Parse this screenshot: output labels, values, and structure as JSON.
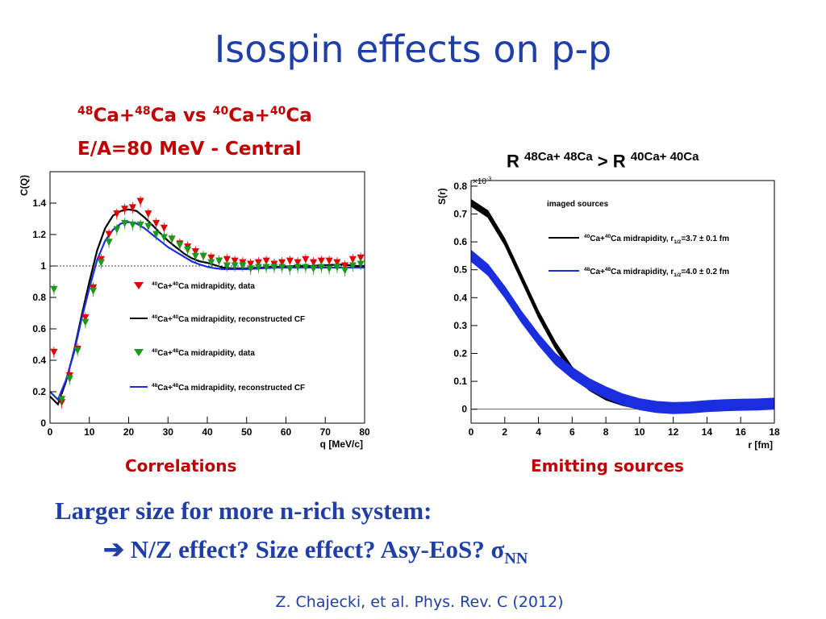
{
  "slide": {
    "title": "Isospin effects on p-p",
    "subtitle_line1": {
      "a": "48",
      "b": "Ca+",
      "c": "48",
      "d": "Ca vs ",
      "e": "40",
      "f": "Ca+",
      "g": "40",
      "h": "Ca"
    },
    "subtitle_line2": "E/A=80 MeV - Central",
    "r_compare": {
      "r1": "R",
      "sys1": "48Ca+ 48Ca",
      "gt": ">",
      "r2": "R",
      "sys2": "40Ca+ 40Ca"
    },
    "caption_left": "Correlations",
    "caption_right": "Emitting sources",
    "conclusion_line1": "Larger size for more n-rich system:",
    "conclusion_arrow": "➔",
    "conclusion_line2": "N/Z effect? Size effect? Asy-EoS? σ",
    "conclusion_sub": "NN",
    "citation": "Z. Chajecki, et al. Phys. Rev. C (2012)"
  },
  "colors": {
    "title_blue": "#1f3ea8",
    "subtitle_red": "#c00000",
    "red": "#e00000",
    "green": "#1a9a1a",
    "blue": "#1a2ee0",
    "black": "#000000"
  },
  "chart_data": [
    {
      "type": "scatter",
      "ylabel": "C(Q)",
      "xlabel": "q [MeV/c]",
      "xlim": [
        0,
        80
      ],
      "ylim": [
        0,
        1.6
      ],
      "x_ticks": [
        0,
        10,
        20,
        30,
        40,
        50,
        60,
        70,
        80
      ],
      "y_ticks": [
        0,
        0.2,
        0.4,
        0.6,
        0.8,
        1,
        1.2,
        1.4
      ],
      "y_tick_labels": [
        "0",
        "0.2",
        "0.4",
        "0.6",
        "0.8",
        "1",
        "1.2",
        "1.4"
      ],
      "reference_line_y": 1,
      "legend": [
        {
          "sup1": "40",
          "mid1": "Ca+",
          "sup2": "40",
          "rest": "Ca midrapidity, data"
        },
        {
          "sup1": "40",
          "mid1": "Ca+",
          "sup2": "40",
          "rest": "Ca midrapidity, reconstructed CF"
        },
        {
          "sup1": "40",
          "mid1": "Ca+",
          "sup2": "48",
          "rest": "Ca midrapidity, data"
        },
        {
          "sup1": "48",
          "mid1": "Ca+",
          "sup2": "48",
          "rest": "Ca midrapidity, reconstructed CF"
        }
      ],
      "series": [
        {
          "name": "40Ca+40Ca midrapidity, data",
          "color": "#e00000",
          "marker": "triangle-down",
          "x": [
            1,
            3,
            5,
            7,
            9,
            11,
            13,
            15,
            17,
            19,
            21,
            23,
            25,
            27,
            29,
            31,
            33,
            35,
            37,
            39,
            41,
            43,
            45,
            47,
            49,
            51,
            53,
            55,
            57,
            59,
            61,
            63,
            65,
            67,
            69,
            71,
            73,
            75,
            77,
            79
          ],
          "y": [
            0.45,
            0.13,
            0.3,
            0.47,
            0.67,
            0.86,
            1.04,
            1.2,
            1.33,
            1.36,
            1.37,
            1.41,
            1.33,
            1.27,
            1.24,
            1.17,
            1.14,
            1.12,
            1.09,
            1.06,
            1.05,
            1.03,
            1.04,
            1.03,
            1.02,
            1.01,
            1.02,
            1.03,
            1.01,
            1.02,
            1.03,
            1.02,
            1.04,
            1.02,
            1.03,
            1.03,
            1.02,
            1.0,
            1.04,
            1.05
          ]
        },
        {
          "name": "40Ca+48Ca midrapidity, data",
          "color": "#1a9a1a",
          "marker": "triangle-down",
          "x": [
            1,
            3,
            5,
            7,
            9,
            11,
            13,
            15,
            17,
            19,
            21,
            23,
            25,
            27,
            29,
            31,
            33,
            35,
            37,
            39,
            41,
            43,
            45,
            47,
            49,
            51,
            53,
            55,
            57,
            59,
            61,
            63,
            65,
            67,
            69,
            71,
            73,
            75,
            77,
            79
          ],
          "y": [
            0.85,
            0.15,
            0.28,
            0.46,
            0.64,
            0.84,
            1.02,
            1.15,
            1.23,
            1.27,
            1.26,
            1.26,
            1.25,
            1.2,
            1.18,
            1.17,
            1.13,
            1.1,
            1.06,
            1.06,
            1.02,
            1.03,
            1.0,
            1.0,
            1.0,
            0.98,
            0.99,
            0.99,
            0.99,
            0.99,
            0.98,
            0.99,
            0.99,
            0.98,
            0.99,
            0.98,
            0.99,
            0.97,
            1.0,
            1.01
          ]
        },
        {
          "name": "40Ca+40Ca midrapidity, reconstructed CF",
          "color": "#000000",
          "kind": "line",
          "x": [
            0,
            2,
            4,
            6,
            8,
            10,
            12,
            14,
            16,
            18,
            20,
            22,
            24,
            26,
            28,
            30,
            32,
            34,
            36,
            38,
            40,
            42,
            44,
            46,
            48,
            50,
            54,
            58,
            62,
            66,
            70,
            74,
            78,
            80
          ],
          "y": [
            0.17,
            0.12,
            0.26,
            0.45,
            0.68,
            0.9,
            1.1,
            1.24,
            1.32,
            1.35,
            1.36,
            1.35,
            1.31,
            1.26,
            1.21,
            1.16,
            1.12,
            1.08,
            1.05,
            1.03,
            1.02,
            1.005,
            0.99,
            0.985,
            0.985,
            0.985,
            0.99,
            0.995,
            1.0,
            1.0,
            1.005,
            1.01,
            1.0,
            1.0
          ]
        },
        {
          "name": "48Ca+48Ca midrapidity, reconstructed CF",
          "color": "#1a2ee0",
          "kind": "line",
          "x": [
            0,
            2,
            4,
            6,
            8,
            10,
            12,
            14,
            16,
            18,
            20,
            22,
            24,
            26,
            28,
            30,
            32,
            34,
            36,
            38,
            40,
            42,
            44,
            46,
            48,
            50,
            54,
            58,
            62,
            66,
            70,
            74,
            78,
            80
          ],
          "y": [
            0.2,
            0.15,
            0.27,
            0.44,
            0.66,
            0.86,
            1.04,
            1.16,
            1.23,
            1.27,
            1.28,
            1.27,
            1.24,
            1.2,
            1.16,
            1.12,
            1.09,
            1.06,
            1.03,
            1.01,
            0.995,
            0.985,
            0.98,
            0.98,
            0.98,
            0.98,
            0.985,
            0.99,
            0.99,
            0.99,
            0.99,
            0.99,
            0.99,
            0.99
          ]
        }
      ]
    },
    {
      "type": "line",
      "ylabel": "S(r)",
      "xlabel": "r [fm]",
      "multiplier": "×10",
      "multiplier_exp": "-3",
      "xlim": [
        0,
        18
      ],
      "ylim": [
        -0.05,
        0.82
      ],
      "x_ticks": [
        0,
        2,
        4,
        6,
        8,
        10,
        12,
        14,
        16,
        18
      ],
      "y_ticks": [
        0,
        0.1,
        0.2,
        0.3,
        0.4,
        0.5,
        0.6,
        0.7,
        0.8
      ],
      "y_tick_labels": [
        "0",
        "0.1",
        "0.2",
        "0.3",
        "0.4",
        "0.5",
        "0.6",
        "0.7",
        "0.8"
      ],
      "reference_line_y": 0,
      "legend_title": "imaged sources",
      "legend": [
        {
          "sup1": "40",
          "mid1": "Ca+",
          "sup2": "40",
          "rest": "Ca midrapidity, r",
          "sub": "1/2",
          "tail": "=3.7 ± 0.1 fm"
        },
        {
          "sup1": "48",
          "mid1": "Ca+",
          "sup2": "48",
          "rest": "Ca midrapidity, r",
          "sub": "1/2",
          "tail": "=4.0 ± 0.2 fm"
        }
      ],
      "series": [
        {
          "name": "40Ca+40Ca midrapidity, r1/2=3.7 ± 0.1 fm",
          "color": "#000000",
          "band_halfwidth": 0.012,
          "x": [
            0,
            1,
            2,
            3,
            4,
            5,
            6,
            7,
            8,
            9,
            10,
            11,
            12,
            13,
            14,
            15,
            16,
            17,
            18
          ],
          "y": [
            0.74,
            0.7,
            0.6,
            0.47,
            0.34,
            0.23,
            0.14,
            0.08,
            0.045,
            0.025,
            0.012,
            0.005,
            0.003,
            0.005,
            0.01,
            0.014,
            0.016,
            0.017,
            0.02
          ]
        },
        {
          "name": "48Ca+48Ca midrapidity, r1/2=4.0 ± 0.2 fm",
          "color": "#1a2ee0",
          "band_halfwidth": 0.02,
          "x": [
            0,
            1,
            2,
            3,
            4,
            5,
            6,
            7,
            8,
            9,
            10,
            11,
            12,
            13,
            14,
            15,
            16,
            17,
            18
          ],
          "y": [
            0.55,
            0.5,
            0.42,
            0.33,
            0.25,
            0.18,
            0.13,
            0.09,
            0.06,
            0.035,
            0.018,
            0.008,
            0.004,
            0.006,
            0.011,
            0.014,
            0.016,
            0.017,
            0.02
          ]
        }
      ]
    }
  ]
}
